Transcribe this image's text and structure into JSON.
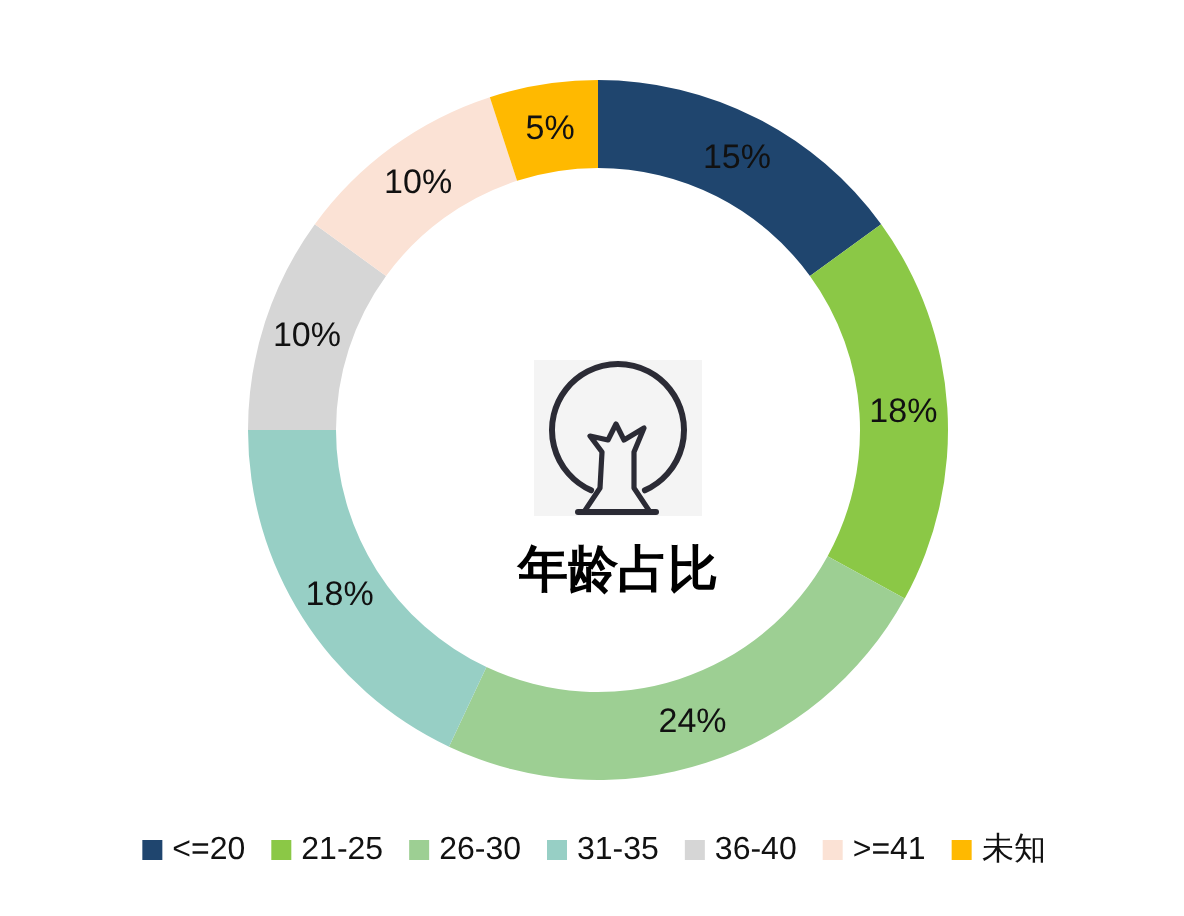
{
  "chart_data": {
    "type": "donut",
    "title": "年龄占比",
    "categories": [
      "<=20",
      "21-25",
      "26-30",
      "31-35",
      "36-40",
      ">=41",
      "未知"
    ],
    "values": [
      15,
      18,
      24,
      18,
      10,
      10,
      5
    ],
    "colors": [
      "#1f456e",
      "#8bc846",
      "#9dcf93",
      "#97cfc5",
      "#d6d6d6",
      "#fbe2d5",
      "#ffb900"
    ],
    "value_labels": [
      "15%",
      "18%",
      "24%",
      "18%",
      "10%",
      "10%",
      "5%"
    ],
    "legend": "bottom"
  }
}
